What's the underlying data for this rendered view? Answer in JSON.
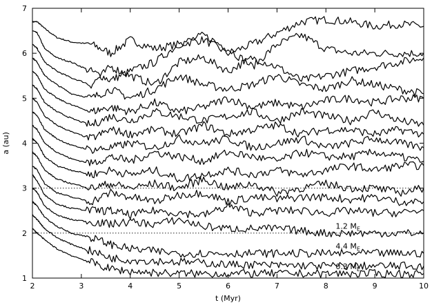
{
  "chart_data": {
    "type": "line",
    "title": "",
    "xlabel": "t (Myr)",
    "ylabel": "a (au)",
    "xlim": [
      2,
      10
    ],
    "ylim": [
      1,
      7
    ],
    "xticks": [
      "2",
      "3",
      "4",
      "5",
      "6",
      "7",
      "8",
      "9",
      "10"
    ],
    "yticks": [
      "1",
      "2",
      "3",
      "4",
      "5",
      "6",
      "7"
    ],
    "grid": false,
    "legend": "none",
    "reference_lines": [
      {
        "y": 3.0,
        "style": "dotted"
      },
      {
        "y": 2.0,
        "style": "dotted"
      }
    ],
    "annotations": [
      {
        "main": "1.2 M",
        "sub": "E",
        "x": 8.2,
        "y": 2.1
      },
      {
        "main": "4.4 M",
        "sub": "E",
        "x": 8.2,
        "y": 1.65
      },
      {
        "main": "0.3 M",
        "sub": "E",
        "x": 8.2,
        "y": 1.2
      }
    ],
    "series": [
      {
        "x": [
          2.0,
          2.1,
          2.25,
          2.5,
          2.8,
          3.2,
          3.6,
          4.0,
          4.5,
          5.0,
          5.5,
          6.0,
          6.5,
          7.0,
          7.5,
          8.0,
          8.5,
          9.0,
          9.5,
          10.0
        ],
        "y": [
          6.7,
          6.7,
          6.55,
          6.35,
          6.25,
          6.2,
          6.0,
          6.3,
          6.1,
          6.2,
          6.3,
          6.0,
          6.2,
          6.45,
          6.7,
          6.75,
          6.7,
          6.6,
          6.65,
          6.6
        ]
      },
      {
        "x": [
          2.0,
          2.1,
          2.25,
          2.5,
          2.8,
          3.2,
          3.6,
          4.0,
          4.5,
          5.0,
          5.5,
          6.0,
          6.5,
          7.0,
          7.5,
          8.0,
          8.5,
          9.0,
          9.5,
          10.0
        ],
        "y": [
          6.5,
          6.45,
          6.1,
          5.9,
          5.8,
          5.6,
          5.4,
          5.6,
          5.8,
          6.2,
          6.4,
          6.1,
          5.7,
          6.2,
          6.4,
          6.1,
          6.0,
          6.0,
          6.0,
          6.0
        ]
      },
      {
        "x": [
          2.0,
          2.1,
          2.25,
          2.5,
          2.8,
          3.2,
          3.6,
          4.0,
          4.5,
          5.0,
          5.5,
          6.0,
          6.5,
          7.0,
          7.5,
          8.0,
          8.5,
          9.0,
          9.5,
          10.0
        ],
        "y": [
          6.2,
          6.1,
          5.8,
          5.6,
          5.45,
          5.3,
          5.7,
          5.5,
          5.3,
          5.8,
          5.9,
          5.6,
          5.9,
          5.7,
          5.4,
          5.5,
          5.6,
          5.7,
          5.8,
          5.9
        ]
      },
      {
        "x": [
          2.0,
          2.1,
          2.25,
          2.5,
          2.8,
          3.2,
          3.6,
          4.0,
          4.5,
          5.0,
          5.5,
          6.0,
          6.5,
          7.0,
          7.5,
          8.0,
          8.5,
          9.0,
          9.5,
          10.0
        ],
        "y": [
          5.9,
          5.8,
          5.5,
          5.3,
          5.1,
          5.0,
          5.2,
          5.0,
          5.2,
          5.5,
          5.3,
          5.2,
          5.3,
          5.5,
          5.3,
          5.2,
          5.4,
          5.3,
          5.2,
          5.1
        ]
      },
      {
        "x": [
          2.0,
          2.1,
          2.25,
          2.5,
          2.8,
          3.2,
          3.6,
          4.0,
          4.5,
          5.0,
          5.5,
          6.0,
          6.5,
          7.0,
          7.5,
          8.0,
          8.5,
          9.0,
          9.5,
          10.0
        ],
        "y": [
          5.6,
          5.5,
          5.2,
          5.0,
          4.85,
          4.7,
          4.8,
          4.7,
          4.9,
          4.7,
          4.8,
          5.0,
          4.8,
          4.9,
          4.8,
          4.95,
          5.0,
          4.9,
          5.0,
          5.0
        ]
      },
      {
        "x": [
          2.0,
          2.1,
          2.25,
          2.5,
          2.8,
          3.2,
          3.6,
          4.0,
          4.5,
          5.0,
          5.5,
          6.0,
          6.5,
          7.0,
          7.5,
          8.0,
          8.5,
          9.0,
          9.5,
          10.0
        ],
        "y": [
          5.3,
          5.2,
          4.9,
          4.7,
          4.55,
          4.4,
          4.6,
          4.5,
          4.7,
          4.6,
          4.5,
          4.6,
          4.7,
          4.5,
          4.7,
          4.6,
          4.5,
          4.7,
          4.5,
          4.4
        ]
      },
      {
        "x": [
          2.0,
          2.1,
          2.25,
          2.5,
          2.8,
          3.2,
          3.6,
          4.0,
          4.5,
          5.0,
          5.5,
          6.0,
          6.5,
          7.0,
          7.5,
          8.0,
          8.5,
          9.0,
          9.5,
          10.0
        ],
        "y": [
          5.0,
          4.9,
          4.6,
          4.4,
          4.25,
          4.1,
          4.3,
          4.2,
          4.3,
          4.2,
          4.4,
          4.2,
          4.3,
          4.4,
          4.2,
          4.3,
          4.3,
          4.2,
          4.3,
          4.2
        ]
      },
      {
        "x": [
          2.0,
          2.1,
          2.25,
          2.5,
          2.8,
          3.2,
          3.6,
          4.0,
          4.5,
          5.0,
          5.5,
          6.0,
          6.5,
          7.0,
          7.5,
          8.0,
          8.5,
          9.0,
          9.5,
          10.0
        ],
        "y": [
          4.7,
          4.6,
          4.3,
          4.1,
          3.95,
          3.85,
          3.9,
          4.0,
          3.9,
          4.1,
          4.0,
          4.1,
          3.9,
          4.0,
          4.1,
          3.9,
          4.0,
          4.1,
          4.0,
          3.9
        ]
      },
      {
        "x": [
          2.0,
          2.1,
          2.25,
          2.5,
          2.8,
          3.2,
          3.6,
          4.0,
          4.5,
          5.0,
          5.5,
          6.0,
          6.5,
          7.0,
          7.5,
          8.0,
          8.5,
          9.0,
          9.5,
          10.0
        ],
        "y": [
          4.4,
          4.3,
          4.0,
          3.8,
          3.65,
          3.55,
          3.7,
          3.6,
          3.8,
          3.7,
          3.6,
          3.8,
          3.7,
          3.6,
          3.8,
          3.7,
          3.7,
          3.8,
          3.7,
          3.6
        ]
      },
      {
        "x": [
          2.0,
          2.1,
          2.25,
          2.5,
          2.8,
          3.2,
          3.6,
          4.0,
          4.5,
          5.0,
          5.5,
          6.0,
          6.5,
          7.0,
          7.5,
          8.0,
          8.5,
          9.0,
          9.5,
          10.0
        ],
        "y": [
          4.1,
          4.0,
          3.7,
          3.5,
          3.4,
          3.3,
          3.4,
          3.3,
          3.4,
          3.2,
          3.3,
          3.4,
          3.3,
          3.4,
          3.3,
          3.4,
          3.5,
          3.4,
          3.5,
          3.5
        ]
      },
      {
        "x": [
          2.0,
          2.1,
          2.25,
          2.5,
          2.8,
          3.2,
          3.6,
          4.0,
          4.5,
          5.0,
          5.5,
          6.0,
          6.5,
          7.0,
          7.5,
          8.0,
          8.5,
          9.0,
          9.5,
          10.0
        ],
        "y": [
          3.8,
          3.7,
          3.4,
          3.2,
          3.1,
          3.0,
          3.1,
          3.0,
          3.1,
          3.0,
          3.2,
          3.0,
          3.1,
          2.9,
          3.0,
          3.1,
          3.0,
          3.0,
          2.9,
          3.0
        ]
      },
      {
        "x": [
          2.0,
          2.1,
          2.25,
          2.5,
          2.8,
          3.2,
          3.6,
          4.0,
          4.5,
          5.0,
          5.5,
          6.0,
          6.5,
          7.0,
          7.5,
          8.0,
          8.5,
          9.0,
          9.5,
          10.0
        ],
        "y": [
          3.5,
          3.4,
          3.1,
          2.9,
          2.8,
          2.7,
          2.9,
          2.8,
          2.7,
          2.85,
          2.9,
          2.7,
          2.8,
          2.75,
          2.8,
          2.8,
          2.75,
          2.8,
          2.7,
          2.7
        ]
      },
      {
        "x": [
          2.0,
          2.1,
          2.25,
          2.5,
          2.8,
          3.2,
          3.6,
          4.0,
          4.5,
          5.0,
          5.5,
          6.0,
          6.5,
          7.0,
          7.5,
          8.0,
          8.5,
          9.0,
          9.5,
          10.0
        ],
        "y": [
          3.3,
          3.15,
          2.85,
          2.65,
          2.55,
          2.5,
          2.5,
          2.4,
          2.5,
          2.45,
          2.4,
          2.6,
          2.45,
          2.5,
          2.5,
          2.45,
          2.5,
          2.45,
          2.45,
          2.5
        ]
      },
      {
        "x": [
          2.0,
          2.1,
          2.25,
          2.5,
          2.8,
          3.2,
          3.6,
          4.0,
          4.5,
          5.0,
          5.5,
          6.0,
          6.5,
          7.0,
          7.5,
          8.0,
          8.5,
          9.0,
          9.5,
          10.0
        ],
        "y": [
          3.0,
          2.9,
          2.6,
          2.4,
          2.3,
          2.25,
          2.2,
          2.25,
          2.2,
          2.3,
          2.15,
          2.1,
          2.1,
          2.1,
          2.05,
          2.0,
          2.0,
          2.0,
          2.0,
          2.0
        ]
      },
      {
        "x": [
          2.0,
          2.1,
          2.25,
          2.5,
          2.8,
          3.2,
          3.6,
          4.0,
          4.5,
          5.0,
          5.5,
          6.0,
          6.5,
          7.0,
          7.5,
          8.0,
          8.5,
          9.0,
          9.5,
          10.0
        ],
        "y": [
          2.7,
          2.6,
          2.35,
          2.15,
          2.0,
          1.9,
          1.75,
          1.65,
          1.6,
          1.55,
          1.55,
          1.55,
          1.55,
          1.55,
          1.55,
          1.55,
          1.55,
          1.55,
          1.55,
          1.55
        ]
      },
      {
        "x": [
          2.0,
          2.1,
          2.25,
          2.5,
          2.8,
          3.2,
          3.6,
          4.0,
          4.5,
          5.0,
          5.5,
          6.0,
          6.5,
          7.0,
          7.5,
          8.0,
          8.5,
          9.0,
          9.5,
          10.0
        ],
        "y": [
          2.4,
          2.3,
          2.1,
          1.9,
          1.75,
          1.6,
          1.45,
          1.4,
          1.38,
          1.36,
          1.34,
          1.3,
          1.3,
          1.28,
          1.28,
          1.27,
          1.27,
          1.27,
          1.27,
          1.27
        ]
      },
      {
        "x": [
          2.0,
          2.1,
          2.25,
          2.5,
          2.8,
          3.2,
          3.6,
          4.0,
          4.5,
          5.0,
          5.5,
          6.0,
          6.5,
          7.0,
          7.5,
          8.0,
          8.5,
          9.0,
          9.5,
          10.0
        ],
        "y": [
          2.1,
          2.0,
          1.85,
          1.65,
          1.5,
          1.35,
          1.2,
          1.15,
          1.12,
          1.1,
          1.1,
          1.1,
          1.1,
          1.1,
          1.1,
          1.1,
          1.1,
          1.1,
          1.1,
          1.1
        ]
      }
    ]
  }
}
